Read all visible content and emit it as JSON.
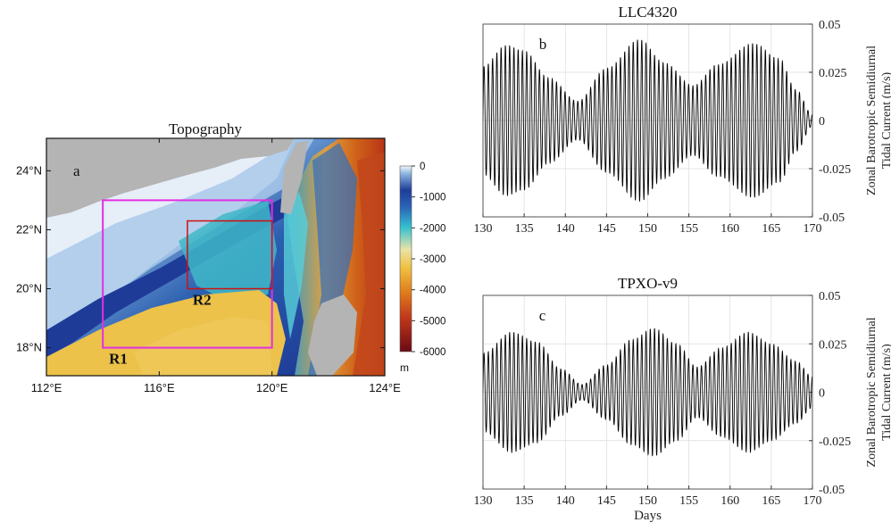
{
  "panel_a": {
    "title": "Topography",
    "panel_label": "a",
    "lon_ticks": [
      "112°E",
      "116°E",
      "120°E",
      "124°E"
    ],
    "lat_ticks": [
      "24°N",
      "22°N",
      "20°N",
      "18°N"
    ],
    "colorbar_ticks": [
      "0",
      "-1000",
      "-2000",
      "-3000",
      "-4000",
      "-5000",
      "-6000"
    ],
    "colorbar_unit": "m",
    "regions": [
      {
        "name": "R1",
        "color": "#e22fe2",
        "lon": [
          114,
          120
        ],
        "lat": [
          18,
          23
        ]
      },
      {
        "name": "R2",
        "color": "#cc1111",
        "lon": [
          117,
          120
        ],
        "lat": [
          20,
          22.3
        ]
      }
    ]
  },
  "chart_data": [
    {
      "type": "line",
      "title": "LLC4320",
      "panel_label": "b",
      "xlabel": "",
      "ylabel_lines": [
        "Zonal Barotropic Semidiurnal",
        "Tidal Current (m/s)"
      ],
      "xlim": [
        130,
        170
      ],
      "ylim": [
        -0.05,
        0.05
      ],
      "x_ticks": [
        "130",
        "135",
        "140",
        "145",
        "150",
        "155",
        "160",
        "165",
        "170"
      ],
      "y_ticks": [
        "0.05",
        "0.025",
        "0",
        "-0.025",
        "-0.05"
      ],
      "grid": true,
      "series": [
        {
          "color": "#000000",
          "period_days": 0.5175,
          "envelope": {
            "x": [
              130,
              132.8,
              135,
              138,
              141.5,
              145,
              149,
              152,
              155.5,
              158.5,
              162.8,
              166,
              168,
              170
            ],
            "y": [
              0.028,
              0.039,
              0.036,
              0.022,
              0.01,
              0.027,
              0.042,
              0.03,
              0.018,
              0.029,
              0.04,
              0.032,
              0.016,
              0.003
            ]
          }
        }
      ]
    },
    {
      "type": "line",
      "title": "TPXO-v9",
      "panel_label": "c",
      "xlabel": "Days",
      "ylabel_lines": [
        "Zonal Barotropic Semidiurnal",
        "Tidal Current (m/s)"
      ],
      "xlim": [
        130,
        170
      ],
      "ylim": [
        -0.05,
        0.05
      ],
      "x_ticks": [
        "130",
        "135",
        "140",
        "145",
        "150",
        "155",
        "160",
        "165",
        "170"
      ],
      "y_ticks": [
        "0.05",
        "0.025",
        "0",
        "-0.025",
        "-0.05"
      ],
      "grid": true,
      "series": [
        {
          "color": "#000000",
          "period_days": 0.5175,
          "envelope": {
            "x": [
              130,
              133.5,
              136.5,
              139.5,
              142,
              145,
              148,
              150.7,
              153.5,
              156,
              159,
              162.2,
              165,
              168,
              170
            ],
            "y": [
              0.02,
              0.031,
              0.026,
              0.012,
              0.004,
              0.014,
              0.027,
              0.033,
              0.025,
              0.013,
              0.023,
              0.031,
              0.025,
              0.016,
              0.008
            ]
          }
        }
      ]
    }
  ]
}
